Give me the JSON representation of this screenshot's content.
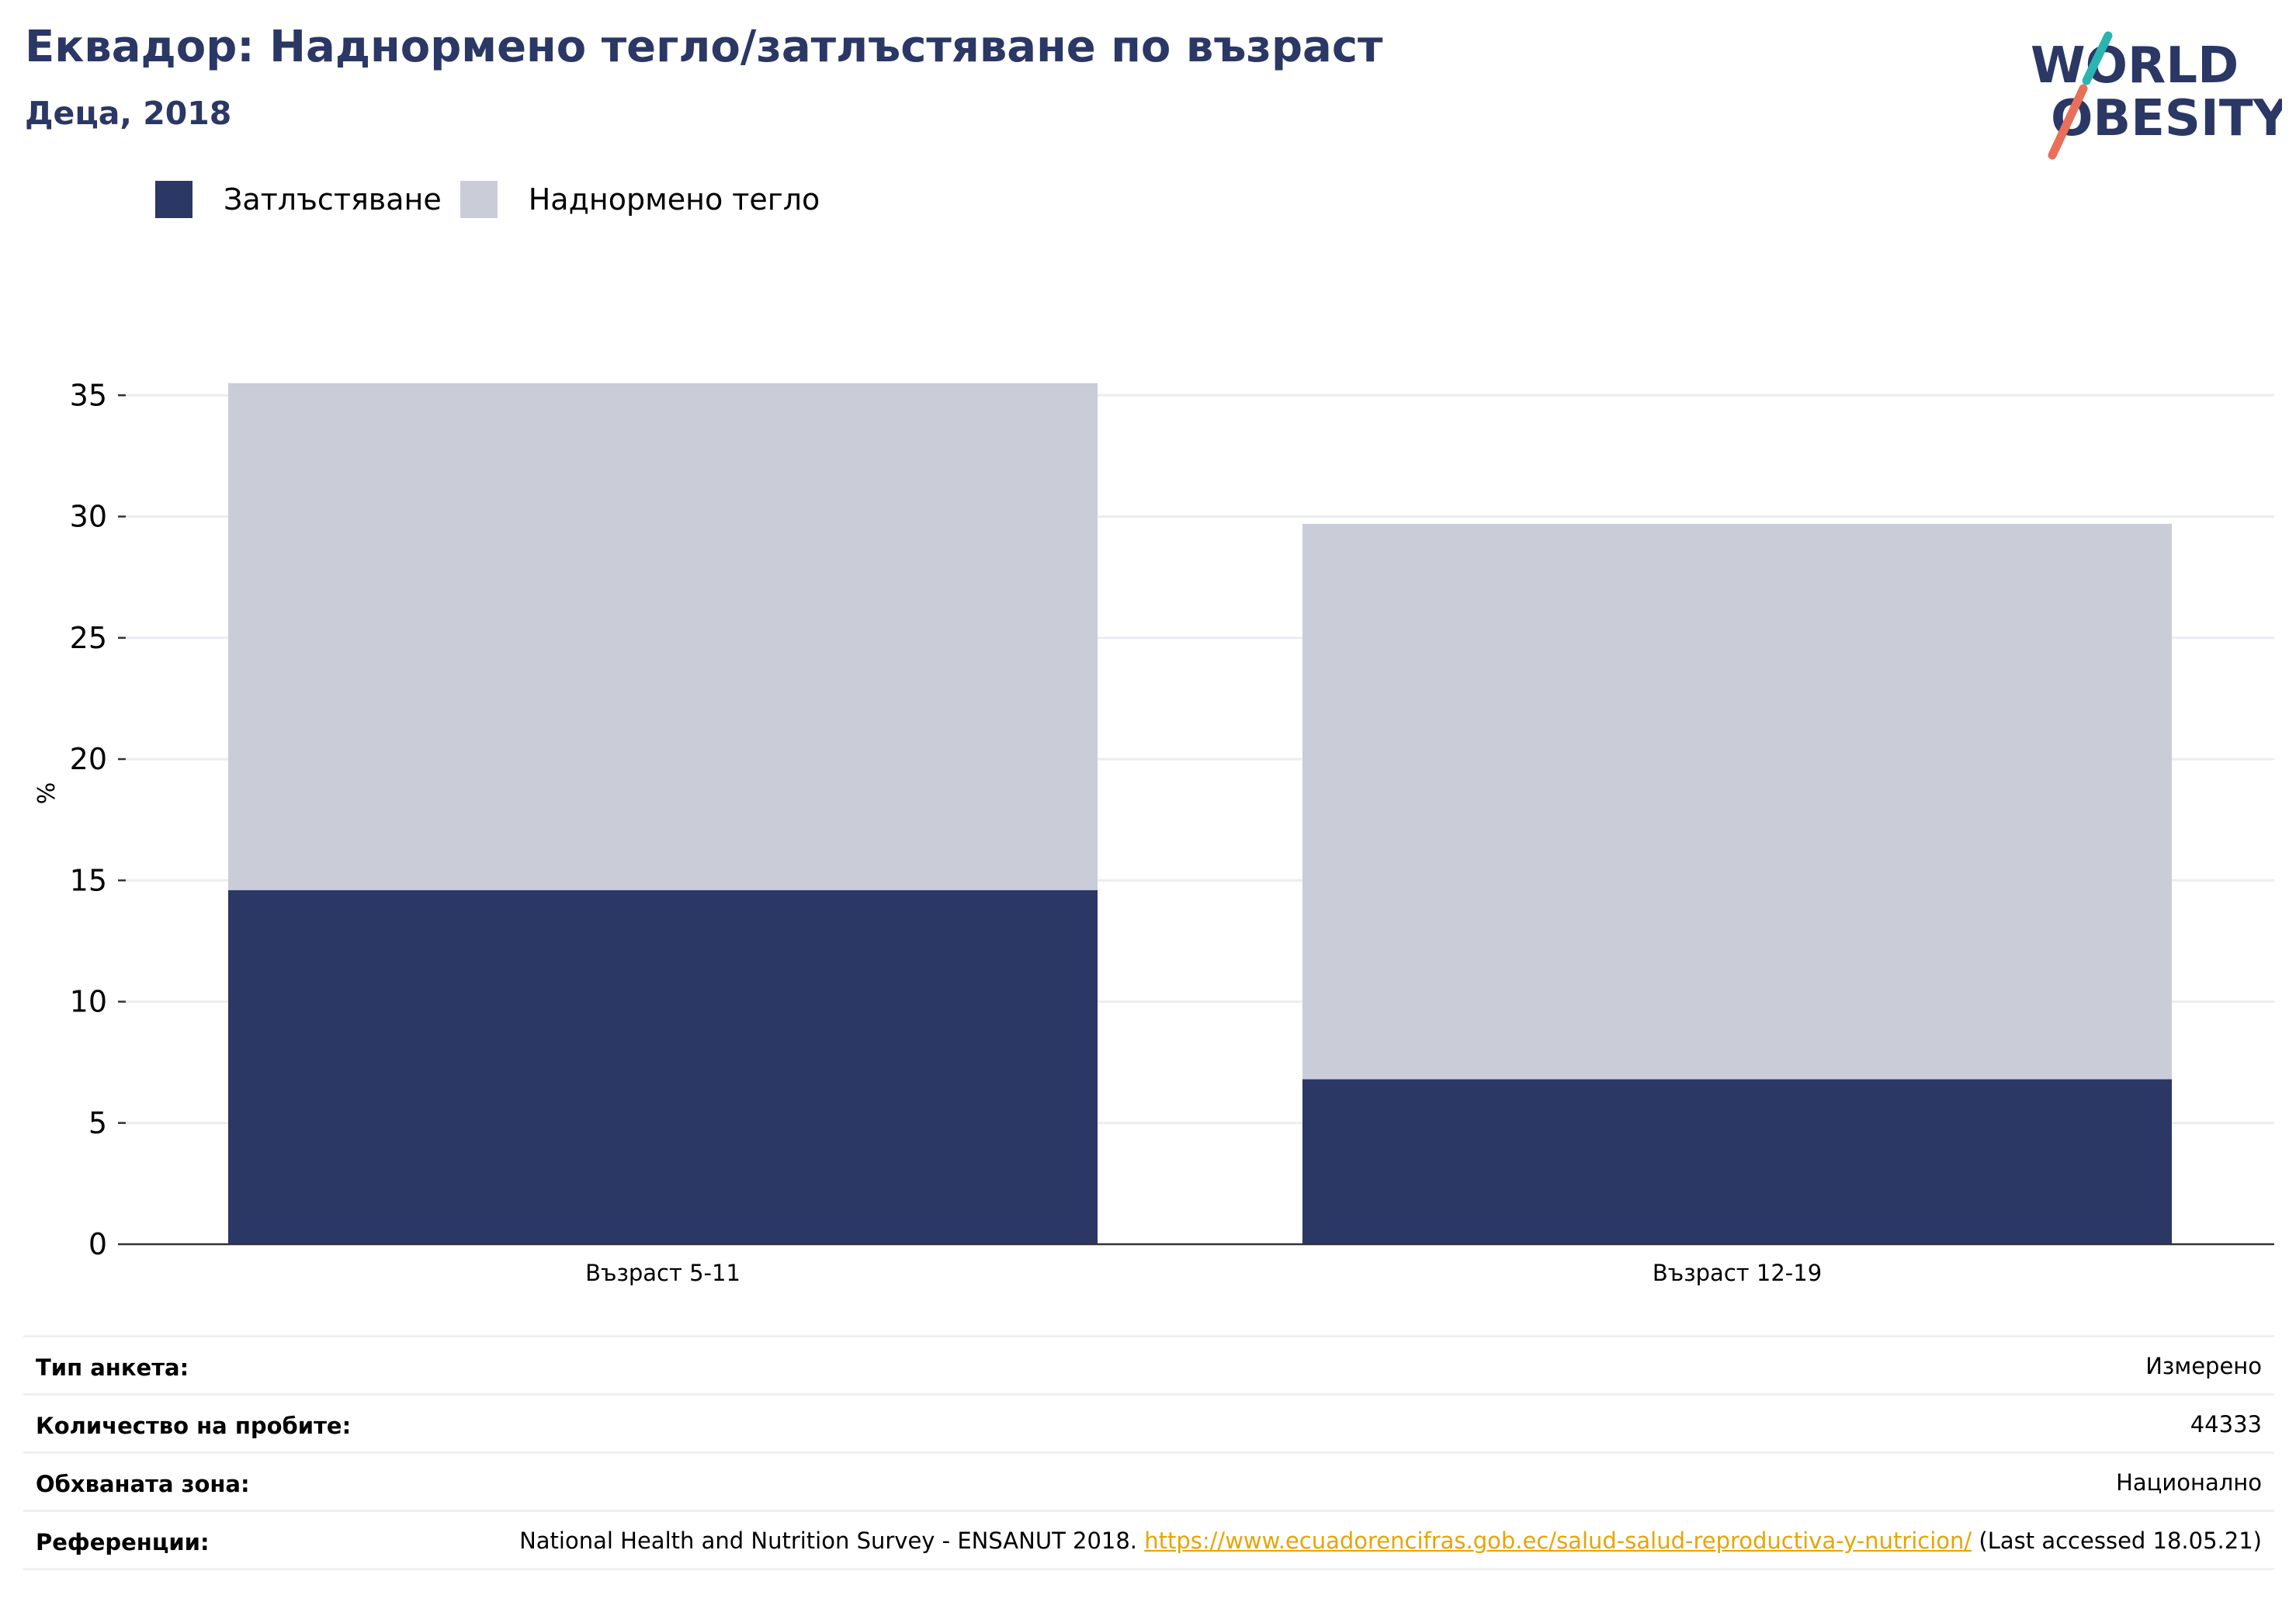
{
  "header": {
    "title": "Еквадор: Наднормено тегло/затлъстяване по възраст",
    "subtitle": "Деца, 2018"
  },
  "logo": {
    "line1": "WORLD",
    "line2": "OBESITY",
    "slash_colors": [
      "#2bb5b1",
      "#e8705a"
    ],
    "text_color": "#2b3764"
  },
  "chart_data": {
    "type": "bar",
    "stacked": true,
    "categories": [
      "Възраст 5-11",
      "Възраст 12-19"
    ],
    "series": [
      {
        "name": "Затлъстяване",
        "color": "#2b3764",
        "values": [
          14.6,
          6.8
        ]
      },
      {
        "name": "Наднормено тегло",
        "color": "#cacdd8",
        "values": [
          20.9,
          22.9
        ]
      }
    ],
    "ylabel": "%",
    "ylim": [
      0,
      36
    ],
    "yticks": [
      0,
      5,
      10,
      15,
      20,
      25,
      30,
      35
    ],
    "grid": true,
    "legend": "top-left"
  },
  "info": {
    "rows": [
      {
        "label": "Тип анкета:",
        "value": "Измерено"
      },
      {
        "label": "Количество на пробите:",
        "value": "44333"
      },
      {
        "label": "Обхваната зона:",
        "value": "Национално"
      }
    ],
    "reference": {
      "label": "Референции:",
      "text_before": "National Health and Nutrition Survey - ENSANUT 2018. ",
      "link": "https://www.ecuadorencifras.gob.ec/salud-salud-reproductiva-y-nutricion/",
      "text_after": " (Last accessed 18.05.21)"
    }
  }
}
